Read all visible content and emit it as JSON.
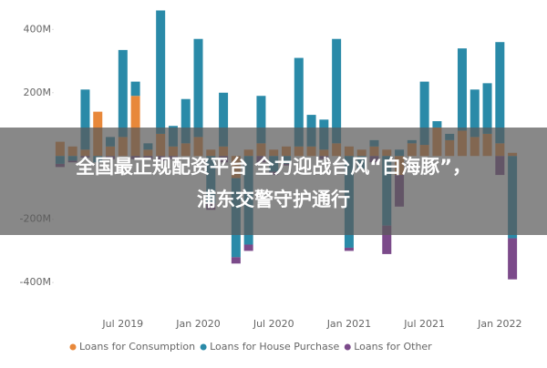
{
  "chart_data": {
    "type": "stacked-bar",
    "categories": [
      null,
      null,
      null,
      null,
      null,
      "Jul 2019",
      null,
      null,
      null,
      null,
      null,
      "Jan 2020",
      null,
      null,
      null,
      null,
      null,
      "Jul 2020",
      null,
      null,
      null,
      null,
      null,
      "Jan 2021",
      null,
      null,
      null,
      null,
      null,
      "Jul 2021",
      null,
      null,
      null,
      null,
      null,
      "Jan 2022",
      null
    ],
    "series": [
      {
        "name": "Loans for Consumption",
        "color": "#e8883a",
        "values": [
          45,
          30,
          20,
          140,
          30,
          60,
          190,
          20,
          70,
          30,
          40,
          60,
          20,
          30,
          -70,
          20,
          40,
          20,
          30,
          30,
          30,
          20,
          40,
          30,
          20,
          30,
          20,
          -60,
          40,
          35,
          90,
          50,
          80,
          60,
          70,
          40,
          10
        ]
      },
      {
        "name": "Loans for House Purchase",
        "color": "#2a8aa8",
        "values": [
          -25,
          -15,
          190,
          -20,
          30,
          275,
          45,
          20,
          390,
          65,
          140,
          310,
          -150,
          170,
          -250,
          -280,
          150,
          -50,
          -25,
          280,
          100,
          95,
          330,
          -290,
          -40,
          20,
          -220,
          20,
          10,
          200,
          20,
          20,
          260,
          150,
          160,
          320,
          -260
        ]
      },
      {
        "name": "Loans for Other",
        "color": "#7b4a8a",
        "values": [
          -10,
          -5,
          -5,
          0,
          -10,
          0,
          -10,
          -10,
          -15,
          -10,
          0,
          0,
          -20,
          -20,
          -20,
          -20,
          -20,
          -10,
          -5,
          0,
          0,
          -10,
          0,
          -10,
          0,
          -20,
          -90,
          -100,
          0,
          0,
          0,
          0,
          0,
          0,
          0,
          -60,
          -130
        ]
      }
    ],
    "ylim": [
      -460,
      470
    ],
    "yticks": [
      {
        "value": -400,
        "label": "-400M"
      },
      {
        "value": -200,
        "label": "-200M"
      },
      {
        "value": 200,
        "label": "200M"
      },
      {
        "value": 400,
        "label": "400M"
      }
    ]
  },
  "banner": {
    "lines": [
      "全国最正规配资平台 全力迎战台风“白海豚”，",
      "浦东交警守护通行"
    ]
  }
}
